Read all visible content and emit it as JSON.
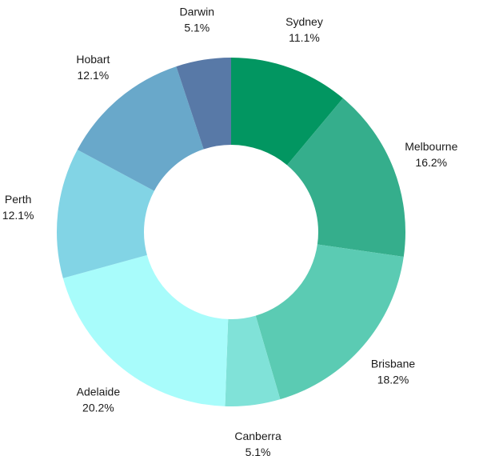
{
  "chart_data": {
    "type": "pie",
    "style": "donut",
    "title": "",
    "slices": [
      {
        "label": "Sydney",
        "value": 11.1,
        "percent_text": "11.1%",
        "color": "#029661"
      },
      {
        "label": "Melbourne",
        "value": 16.2,
        "percent_text": "16.2%",
        "color": "#35ae8c"
      },
      {
        "label": "Brisbane",
        "value": 18.2,
        "percent_text": "18.2%",
        "color": "#5bcbb3"
      },
      {
        "label": "Canberra",
        "value": 5.1,
        "percent_text": "5.1%",
        "color": "#80e2d8"
      },
      {
        "label": "Adelaide",
        "value": 20.2,
        "percent_text": "20.2%",
        "color": "#a8fcfb"
      },
      {
        "label": "Perth",
        "value": 12.1,
        "percent_text": "12.1%",
        "color": "#82d4e5"
      },
      {
        "label": "Hobart",
        "value": 12.1,
        "percent_text": "12.1%",
        "color": "#69a8ca"
      },
      {
        "label": "Darwin",
        "value": 5.1,
        "percent_text": "5.1%",
        "color": "#5879a7"
      }
    ],
    "start": "12 o'clock",
    "direction": "clockwise",
    "legend": "none"
  }
}
